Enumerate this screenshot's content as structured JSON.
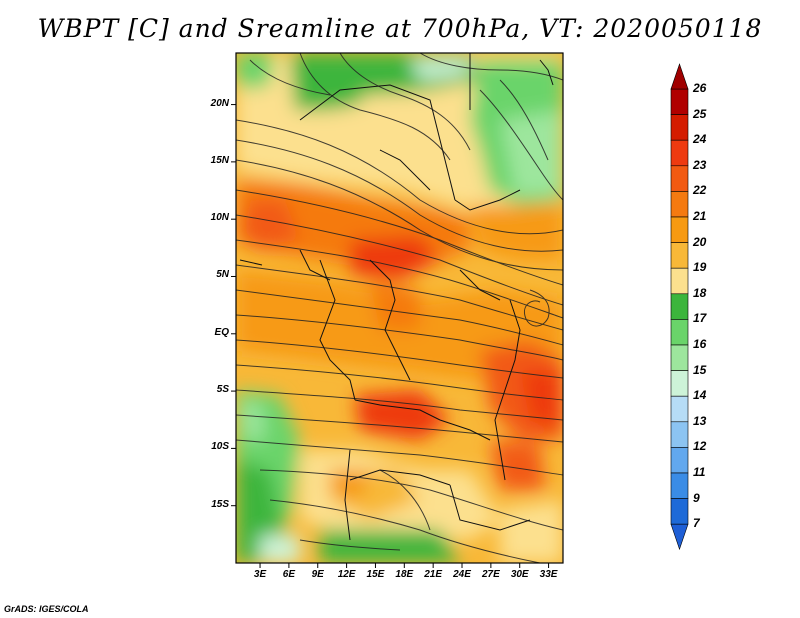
{
  "title": "WBPT [C] and Sreamline at 700hPa, VT: 2020050118",
  "credit": "GrADS: IGES/COLA",
  "map": {
    "lat_labels": [
      "20N",
      "15N",
      "10N",
      "5N",
      "EQ",
      "5S",
      "10S",
      "15S"
    ],
    "lat_values": [
      20,
      15,
      10,
      5,
      0,
      -5,
      -10,
      -15
    ],
    "lon_labels": [
      "3E",
      "6E",
      "9E",
      "12E",
      "15E",
      "18E",
      "21E",
      "24E",
      "27E",
      "30E",
      "33E"
    ],
    "lon_values": [
      3,
      6,
      9,
      12,
      15,
      18,
      21,
      24,
      27,
      30,
      33
    ],
    "lon_range": [
      0.5,
      34.5
    ],
    "lat_range": [
      -20,
      24.5
    ]
  },
  "colorbar": {
    "labels": [
      "26",
      "25",
      "24",
      "23",
      "22",
      "21",
      "20",
      "19",
      "18",
      "17",
      "16",
      "15",
      "14",
      "13",
      "12",
      "11",
      "9",
      "7"
    ],
    "colors": [
      "#b00000",
      "#d41c00",
      "#ee3a10",
      "#f25a12",
      "#f57a10",
      "#f79a12",
      "#f8b838",
      "#fce08e",
      "#3cb53c",
      "#6ad46a",
      "#9de69d",
      "#cdf3d8",
      "#b6dcf6",
      "#8cc4f2",
      "#62a8ee",
      "#3a8ce6",
      "#1e6ad8"
    ]
  }
}
